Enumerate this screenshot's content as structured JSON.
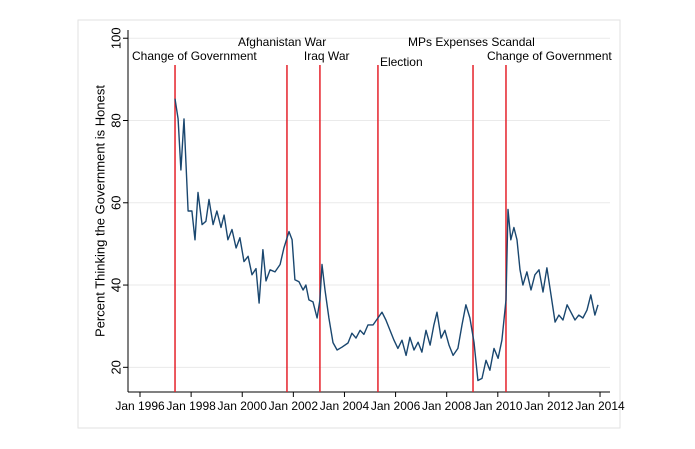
{
  "chart_data": {
    "type": "line",
    "y_label": "Percent Thinking the Government is Honest",
    "xlim": [
      1995.53,
      2014.39
    ],
    "ylim": [
      14,
      102
    ],
    "xticks": [
      {
        "value": 1996,
        "label": "Jan 1996"
      },
      {
        "value": 1998,
        "label": "Jan 1998"
      },
      {
        "value": 2000,
        "label": "Jan 2000"
      },
      {
        "value": 2002,
        "label": "Jan 2002"
      },
      {
        "value": 2004,
        "label": "Jan 2004"
      },
      {
        "value": 2006,
        "label": "Jan 2006"
      },
      {
        "value": 2008,
        "label": "Jan 2008"
      },
      {
        "value": 2010,
        "label": "Jan 2010"
      },
      {
        "value": 2012,
        "label": "Jan 2012"
      },
      {
        "value": 2014,
        "label": "Jan 2014"
      }
    ],
    "yticks": [
      20,
      40,
      60,
      80,
      100
    ],
    "grid": true,
    "series": [
      {
        "color": "#1a476f",
        "x": [
          1997.37,
          1997.49,
          1997.6,
          1997.72,
          1997.88,
          1998.03,
          1998.15,
          1998.27,
          1998.43,
          1998.58,
          1998.7,
          1998.86,
          1999.01,
          1999.17,
          1999.29,
          1999.44,
          1999.6,
          1999.76,
          1999.91,
          2000.07,
          2000.23,
          2000.38,
          2000.54,
          2000.66,
          2000.81,
          2000.93,
          2001.09,
          2001.28,
          2001.48,
          2001.63,
          2001.83,
          2001.95,
          2002.06,
          2002.22,
          2002.38,
          2002.49,
          2002.61,
          2002.77,
          2002.93,
          2003.04,
          2003.12,
          2003.24,
          2003.39,
          2003.55,
          2003.71,
          2003.9,
          2004.14,
          2004.29,
          2004.45,
          2004.61,
          2004.76,
          2004.92,
          2005.12,
          2005.31,
          2005.47,
          2005.62,
          2005.78,
          2005.94,
          2006.09,
          2006.25,
          2006.41,
          2006.56,
          2006.72,
          2006.88,
          2007.03,
          2007.19,
          2007.35,
          2007.5,
          2007.62,
          2007.78,
          2007.93,
          2008.09,
          2008.25,
          2008.44,
          2008.6,
          2008.75,
          2008.91,
          2009.07,
          2009.22,
          2009.38,
          2009.54,
          2009.69,
          2009.85,
          2010.01,
          2010.16,
          2010.32,
          2010.4,
          2010.51,
          2010.63,
          2010.75,
          2010.87,
          2010.98,
          2011.14,
          2011.3,
          2011.45,
          2011.61,
          2011.77,
          2011.92,
          2012.08,
          2012.24,
          2012.39,
          2012.55,
          2012.71,
          2012.86,
          2013.02,
          2013.17,
          2013.33,
          2013.49,
          2013.64,
          2013.8,
          2013.92
        ],
        "values": [
          85.3,
          80.4,
          68,
          80.4,
          58,
          58,
          51,
          62.5,
          54.7,
          55.5,
          60.8,
          54.7,
          58,
          54,
          57,
          51,
          53.5,
          49,
          51.5,
          45.7,
          47,
          42.5,
          44,
          35.6,
          48.6,
          41,
          43.7,
          43.2,
          45,
          49,
          53,
          51,
          41.3,
          40.8,
          38.8,
          40,
          36.4,
          35.9,
          32,
          36.4,
          45,
          38.8,
          32,
          26,
          24.2,
          24.9,
          25.9,
          28.3,
          27.1,
          29,
          28,
          30.3,
          30.3,
          32,
          33.4,
          31.5,
          29,
          26.6,
          24.6,
          26.6,
          22.9,
          27.3,
          24.2,
          26.1,
          23.7,
          29,
          25.4,
          30.3,
          33.4,
          27.1,
          29,
          25.4,
          22.9,
          24.6,
          30.3,
          35.2,
          32,
          26.1,
          16.8,
          17.3,
          21.7,
          19.3,
          24.6,
          22.2,
          26.6,
          36.4,
          58.4,
          51,
          54,
          51,
          43.7,
          40,
          43.2,
          38.8,
          42.5,
          43.7,
          38.3,
          44.2,
          37.6,
          31,
          32.7,
          31.5,
          35.2,
          33.4,
          31.5,
          32.7,
          32,
          33.9,
          37.6,
          32.7,
          35.2
        ]
      }
    ],
    "events": {
      "color": "#e5222b",
      "x": [
        1997.37,
        2001.75,
        2003.04,
        2005.31,
        2009.03,
        2010.32
      ],
      "labels": [
        "Change of Government",
        "Afghanistan War",
        "Iraq War",
        "Election",
        "MPs Expenses Scandal",
        "Change of Government"
      ]
    }
  }
}
